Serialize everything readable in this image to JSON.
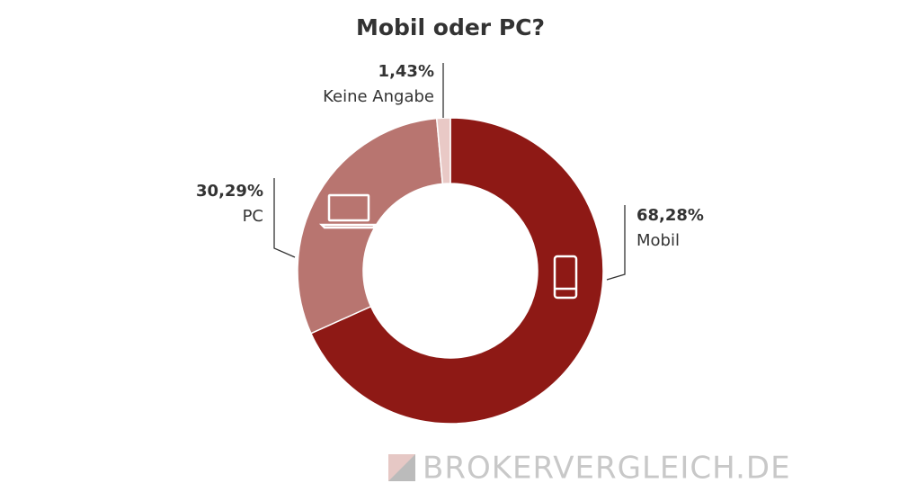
{
  "chart_data": {
    "type": "pie",
    "title": "Mobil oder PC?",
    "categories": [
      "Mobil",
      "PC",
      "Keine Angabe"
    ],
    "values": [
      68.28,
      30.29,
      1.43
    ],
    "value_labels": [
      "68,28%",
      "30,29%",
      "1,43%"
    ],
    "colors": [
      "#8e1915",
      "#b87570",
      "#e9c9c6"
    ],
    "watermark": "BROKERVERGLEICH.DE"
  }
}
